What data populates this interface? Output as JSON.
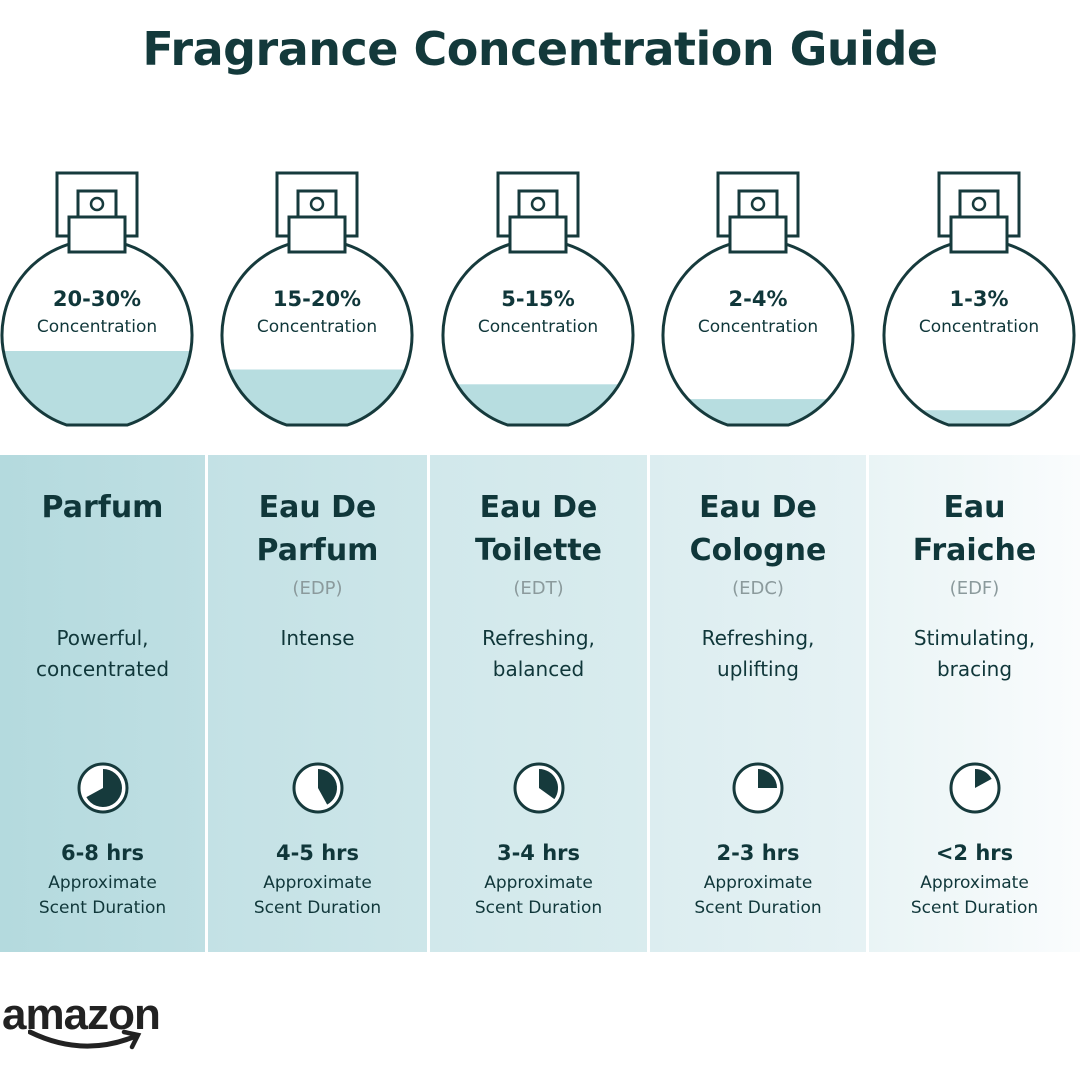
{
  "title": "Fragrance Concentration Guide",
  "colors": {
    "text": "#10373a",
    "liquid": "#b7dde0",
    "outline": "#163a3c"
  },
  "concentration_label": "Concentration",
  "types": [
    {
      "percent": "20-30%",
      "fill_level": 0.4,
      "name_lines": [
        "Parfum"
      ],
      "abbr": "",
      "desc_lines": [
        "Powerful,",
        "concentrated"
      ],
      "clock_fraction": 0.67,
      "duration": "6-8 hrs",
      "bg": [
        "#b4dade",
        "#bfdfe3"
      ]
    },
    {
      "percent": "15-20%",
      "fill_level": 0.3,
      "name_lines": [
        "Eau De",
        "Parfum"
      ],
      "abbr": "(EDP)",
      "desc_lines": [
        "Intense"
      ],
      "clock_fraction": 0.42,
      "duration": "4-5 hrs",
      "bg": [
        "#c3e1e5",
        "#cde6e9"
      ]
    },
    {
      "percent": "5-15%",
      "fill_level": 0.22,
      "name_lines": [
        "Eau De",
        "Toilette"
      ],
      "abbr": "(EDT)",
      "desc_lines": [
        "Refreshing,",
        "balanced"
      ],
      "clock_fraction": 0.35,
      "duration": "3-4 hrs",
      "bg": [
        "#d1e8eb",
        "#d9ecee"
      ]
    },
    {
      "percent": "2-4%",
      "fill_level": 0.14,
      "name_lines": [
        "Eau De",
        "Cologne"
      ],
      "abbr": "(EDC)",
      "desc_lines": [
        "Refreshing,",
        "uplifting"
      ],
      "clock_fraction": 0.25,
      "duration": "2-3 hrs",
      "bg": [
        "#dcedf0",
        "#e6f2f4"
      ]
    },
    {
      "percent": "1-3%",
      "fill_level": 0.08,
      "name_lines": [
        "Eau",
        "Fraiche"
      ],
      "abbr": "(EDF)",
      "desc_lines": [
        "Stimulating,",
        "bracing"
      ],
      "clock_fraction": 0.17,
      "duration": "<2 hrs",
      "bg": [
        "#e9f4f5",
        "#fafcfd"
      ]
    }
  ],
  "duration_label_lines": [
    "Approximate",
    "Scent Duration"
  ],
  "logo": "amazon"
}
